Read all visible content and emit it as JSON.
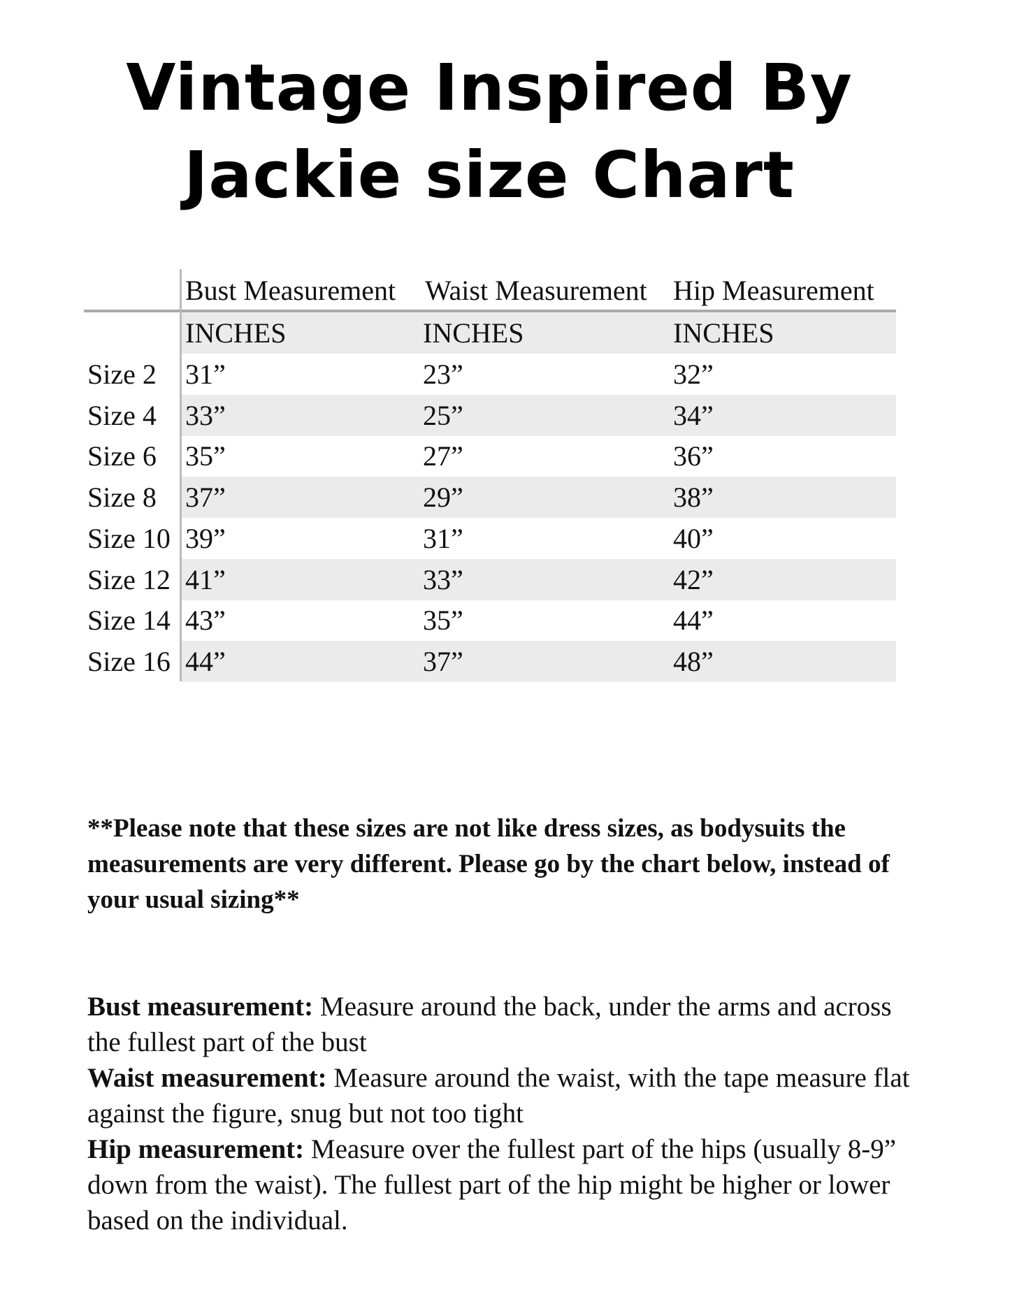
{
  "title": {
    "line1": "Vintage Inspired By",
    "line2": "Jackie size Chart"
  },
  "table": {
    "headers": [
      "Bust Measurement",
      "Waist Measurement",
      "Hip Measurement"
    ],
    "units": [
      "INCHES",
      "INCHES",
      "INCHES"
    ],
    "rows": [
      {
        "size": "Size 2",
        "bust": "31”",
        "waist": "23”",
        "hip": "32”"
      },
      {
        "size": "Size 4",
        "bust": "33”",
        "waist": "25”",
        "hip": "34”"
      },
      {
        "size": "Size 6",
        "bust": "35”",
        "waist": "27”",
        "hip": "36”"
      },
      {
        "size": "Size 8",
        "bust": "37”",
        "waist": "29”",
        "hip": "38”"
      },
      {
        "size": "Size 10",
        "bust": "39”",
        "waist": "31”",
        "hip": "40”"
      },
      {
        "size": "Size 12",
        "bust": "41”",
        "waist": "33”",
        "hip": "42”"
      },
      {
        "size": "Size 14",
        "bust": "43”",
        "waist": "35”",
        "hip": "44”"
      },
      {
        "size": "Size 16",
        "bust": "44”",
        "waist": "37”",
        "hip": "48”"
      }
    ]
  },
  "note": "**Please note that these sizes are not like dress sizes, as bodysuits the measurements are very different. Please go by the chart below, instead of your usual sizing**",
  "definitions": [
    {
      "term": "Bust measurement:",
      "text": " Measure around the back, under the arms and across the fullest part of the bust"
    },
    {
      "term": "Waist measurement:",
      "text": " Measure around the waist, with the tape measure flat against the figure, snug but not too tight"
    },
    {
      "term": "Hip measurement:",
      "text": " Measure over the fullest part of the hips (usually 8-9” down from the waist). The fullest part of the hip might be higher or lower based on the individual."
    }
  ]
}
